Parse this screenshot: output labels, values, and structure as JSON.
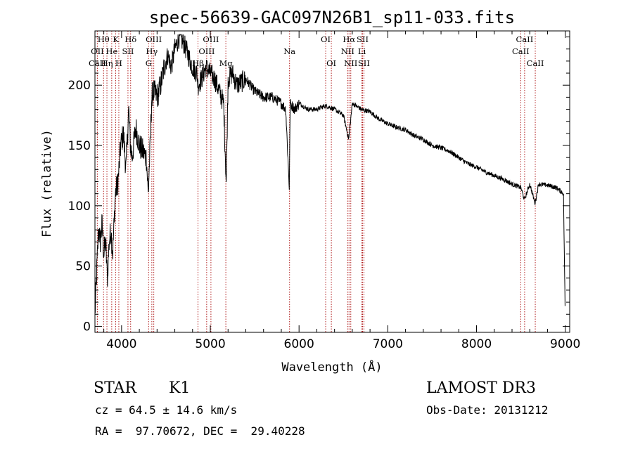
{
  "chart_data": {
    "type": "line",
    "title": "spec-56639-GAC097N26B1_sp11-033.fits",
    "xlabel": "Wavelength (Å)",
    "ylabel": "Flux (relative)",
    "xlim": [
      3700,
      9050
    ],
    "ylim": [
      -5,
      245
    ],
    "xticks": [
      4000,
      5000,
      6000,
      7000,
      8000,
      9000
    ],
    "yticks": [
      0,
      50,
      100,
      150,
      200
    ],
    "spectrum_anchors": {
      "x": [
        3700,
        3720,
        3740,
        3760,
        3780,
        3800,
        3820,
        3840,
        3860,
        3880,
        3900,
        3930,
        3960,
        3990,
        4020,
        4050,
        4080,
        4100,
        4120,
        4160,
        4200,
        4240,
        4280,
        4300,
        4320,
        4340,
        4360,
        4400,
        4440,
        4480,
        4520,
        4560,
        4600,
        4650,
        4700,
        4750,
        4800,
        4850,
        4861,
        4900,
        4950,
        5000,
        5050,
        5100,
        5150,
        5180,
        5200,
        5250,
        5300,
        5400,
        5500,
        5600,
        5700,
        5800,
        5850,
        5890,
        5900,
        5950,
        6000,
        6100,
        6200,
        6300,
        6400,
        6500,
        6560,
        6600,
        6700,
        6800,
        6900,
        7000,
        7100,
        7200,
        7300,
        7400,
        7500,
        7600,
        7700,
        7800,
        7900,
        8000,
        8100,
        8200,
        8300,
        8400,
        8500,
        8540,
        8600,
        8660,
        8700,
        8800,
        8900,
        8980,
        9000
      ],
      "y": [
        10,
        45,
        80,
        70,
        85,
        60,
        70,
        40,
        70,
        80,
        60,
        110,
        120,
        150,
        160,
        130,
        180,
        150,
        140,
        165,
        150,
        145,
        140,
        110,
        145,
        190,
        195,
        190,
        200,
        215,
        225,
        215,
        230,
        240,
        235,
        225,
        215,
        210,
        200,
        205,
        215,
        210,
        205,
        195,
        185,
        118,
        205,
        210,
        200,
        205,
        195,
        190,
        190,
        185,
        180,
        115,
        185,
        180,
        185,
        180,
        180,
        183,
        180,
        175,
        155,
        185,
        180,
        178,
        172,
        168,
        165,
        163,
        158,
        155,
        150,
        148,
        145,
        140,
        135,
        132,
        128,
        125,
        122,
        118,
        115,
        105,
        118,
        102,
        118,
        117,
        115,
        110,
        5
      ]
    },
    "lines": [
      {
        "name": "Hθ",
        "x": 3797,
        "row": 0
      },
      {
        "name": "OII",
        "x": 3727,
        "row": 1
      },
      {
        "name": "CaII",
        "x": 3727,
        "row": 2
      },
      {
        "name": "K",
        "x": 3934,
        "row": 0
      },
      {
        "name": "He",
        "x": 3889,
        "row": 1
      },
      {
        "name": "Hη",
        "x": 3835,
        "row": 2
      },
      {
        "name": "Hδ",
        "x": 4102,
        "row": 0
      },
      {
        "name": "SII",
        "x": 4072,
        "row": 1
      },
      {
        "name": "H",
        "x": 3969,
        "row": 2
      },
      {
        "name": "OIII",
        "x": 4363,
        "row": 0
      },
      {
        "name": "Hγ",
        "x": 4341,
        "row": 1
      },
      {
        "name": "G",
        "x": 4305,
        "row": 2
      },
      {
        "name": "OIII",
        "x": 5007,
        "row": 0
      },
      {
        "name": "OIII",
        "x": 4959,
        "row": 1
      },
      {
        "name": "Hβ",
        "x": 4861,
        "row": 2
      },
      {
        "name": "Mg",
        "x": 5175,
        "row": 2
      },
      {
        "name": "Na",
        "x": 5893,
        "row": 1
      },
      {
        "name": "OI",
        "x": 6300,
        "row": 0
      },
      {
        "name": "OI",
        "x": 6364,
        "row": 2
      },
      {
        "name": "Hα",
        "x": 6563,
        "row": 0
      },
      {
        "name": "SII",
        "x": 6716,
        "row": 0
      },
      {
        "name": "NII",
        "x": 6548,
        "row": 1
      },
      {
        "name": "Li",
        "x": 6708,
        "row": 1
      },
      {
        "name": "NII",
        "x": 6583,
        "row": 2
      },
      {
        "name": "SII",
        "x": 6731,
        "row": 2
      },
      {
        "name": "CaII",
        "x": 8542,
        "row": 0
      },
      {
        "name": "CaII",
        "x": 8498,
        "row": 1
      },
      {
        "name": "CaII",
        "x": 8662,
        "row": 2
      }
    ]
  },
  "info": {
    "class": "STAR",
    "subclass": "K1",
    "survey": "LAMOST DR3",
    "cz": "cz = 64.5 ± 14.6 km/s",
    "obsdate": "Obs-Date: 20131212",
    "radec": "RA =  97.70672, DEC =  29.40228"
  },
  "colors": {
    "line_marker": "#b22222",
    "spectrum": "#000000",
    "axes": "#000000"
  }
}
